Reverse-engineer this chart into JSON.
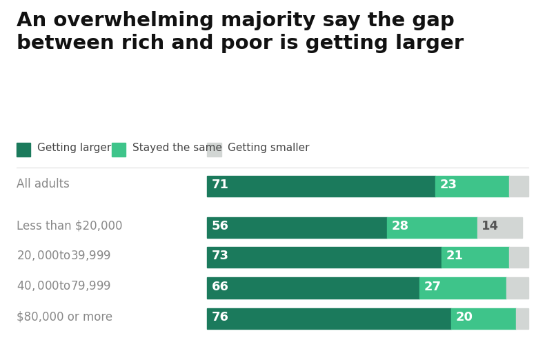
{
  "title_line1": "An overwhelming majority say the gap",
  "title_line2": "between rich and poor is getting larger",
  "row_labels": [
    "All adults",
    "Less than $20,000",
    "$20,000 to $39,999",
    "$40,000 to $79,999",
    "$80,000 or more"
  ],
  "row_gl": [
    71,
    56,
    73,
    66,
    76
  ],
  "row_ss": [
    23,
    28,
    21,
    27,
    20
  ],
  "row_gsm": [
    6,
    14,
    6,
    7,
    4
  ],
  "color_larger": "#1b7a5c",
  "color_same": "#3ec48a",
  "color_smaller": "#d2d6d4",
  "background_color": "#ffffff",
  "label_color": "#808080",
  "bar_label_color_white": "#ffffff",
  "bar_label_color_dark": "#555555",
  "legend_labels": [
    "Getting larger",
    "Stayed the same",
    "Getting smaller"
  ],
  "label_fontsize": 12,
  "bar_label_fontsize": 13,
  "title_fontsize": 21,
  "legend_fontsize": 11
}
